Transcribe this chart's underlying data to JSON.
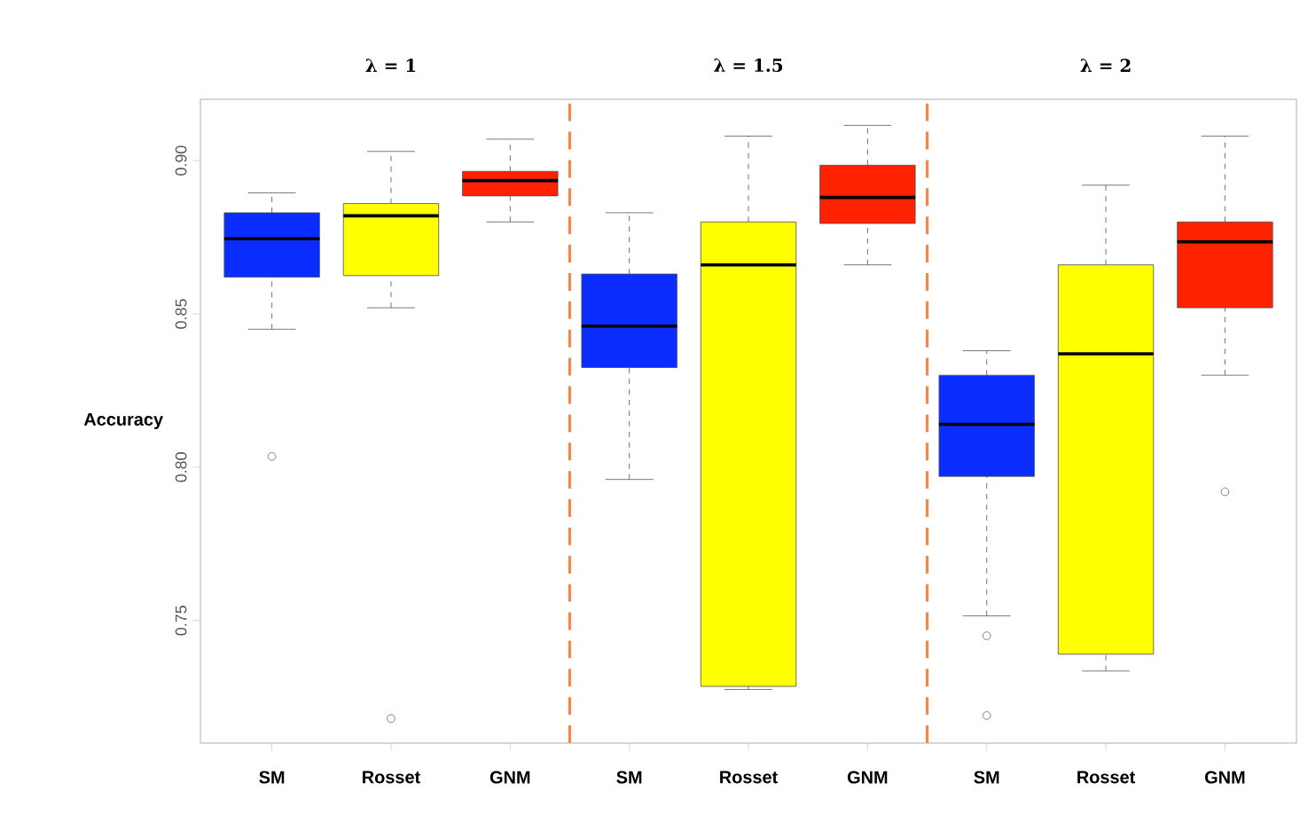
{
  "chart_data": {
    "type": "box",
    "ylabel": "Accuracy",
    "categories": [
      "SM",
      "Rosset",
      "GNM",
      "SM",
      "Rosset",
      "GNM",
      "SM",
      "Rosset",
      "GNM"
    ],
    "colors": [
      "#0a2cff",
      "#ffff00",
      "#ff2200",
      "#0a2cff",
      "#ffff00",
      "#ff2200",
      "#0a2cff",
      "#ffff00",
      "#ff2200"
    ],
    "boxes": [
      {
        "low": 0.845,
        "q1": 0.862,
        "median": 0.8745,
        "q3": 0.883,
        "high": 0.8895,
        "outliers": [
          0.8035
        ]
      },
      {
        "low": 0.852,
        "q1": 0.8625,
        "median": 0.882,
        "q3": 0.886,
        "high": 0.903,
        "outliers": [
          0.718
        ]
      },
      {
        "low": 0.88,
        "q1": 0.8885,
        "median": 0.8935,
        "q3": 0.8965,
        "high": 0.907
      },
      {
        "low": 0.796,
        "q1": 0.8325,
        "median": 0.846,
        "q3": 0.863,
        "high": 0.883
      },
      {
        "low": 0.7275,
        "q1": 0.7285,
        "median": 0.866,
        "q3": 0.88,
        "high": 0.908
      },
      {
        "low": 0.866,
        "q1": 0.8795,
        "median": 0.888,
        "q3": 0.8985,
        "high": 0.9115
      },
      {
        "low": 0.7515,
        "q1": 0.797,
        "median": 0.814,
        "q3": 0.83,
        "high": 0.838,
        "outliers": [
          0.745,
          0.719
        ]
      },
      {
        "low": 0.7335,
        "q1": 0.739,
        "median": 0.837,
        "q3": 0.866,
        "high": 0.892
      },
      {
        "low": 0.83,
        "q1": 0.852,
        "median": 0.8735,
        "q3": 0.88,
        "high": 0.908,
        "outliers": [
          0.792
        ]
      }
    ],
    "ylim": [
      0.71,
      0.92
    ],
    "yticks": [
      0.75,
      {
        "value": 0.8,
        "label": "0.80"
      },
      0.85,
      {
        "value": 0.9,
        "label": "0.90"
      }
    ],
    "annotations": [
      "λ = 1",
      "λ = 1.5",
      "λ = 2"
    ]
  }
}
